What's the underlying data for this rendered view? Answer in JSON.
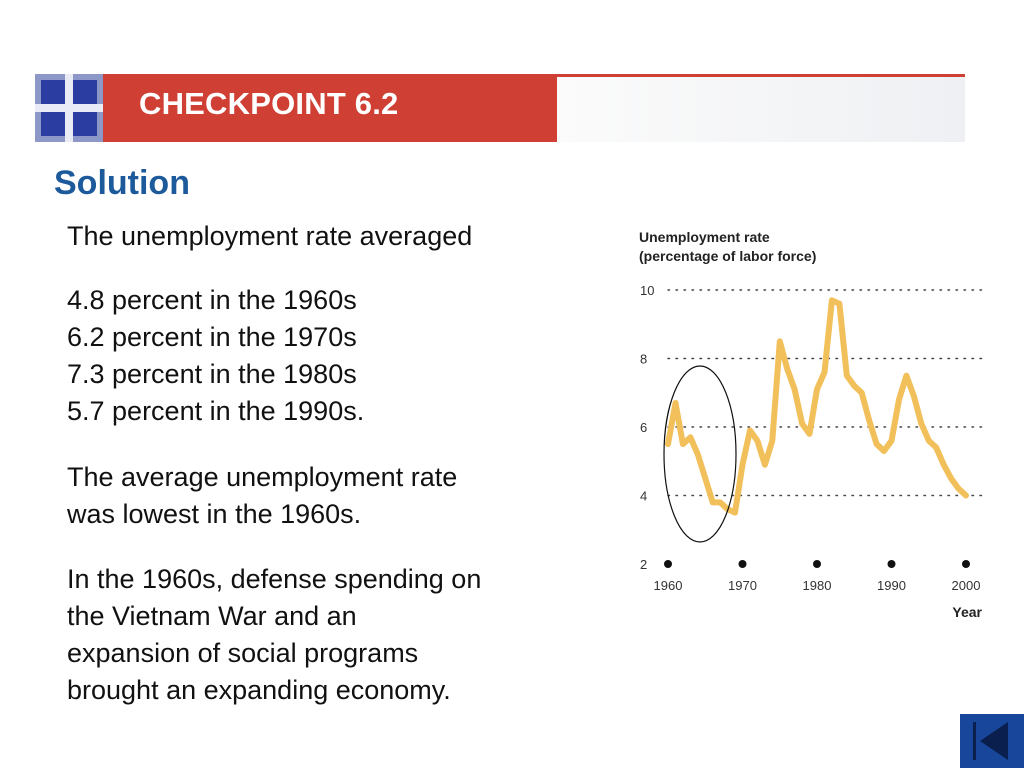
{
  "header": {
    "title": "CHECKPOINT 6.2"
  },
  "section_title": "Solution",
  "paragraphs": {
    "intro": "The unemployment rate averaged",
    "averages": [
      "4.8 percent in the 1960s",
      "6.2 percent in the 1970s",
      "7.3 percent in the 1980s",
      "5.7 percent in the 1990s."
    ],
    "lowest": [
      "The average unemployment rate",
      "was lowest in the 1960s."
    ],
    "context": [
      "In the 1960s, defense spending on",
      "the Vietnam War and an",
      "expansion of social programs",
      "brought an expanding economy."
    ]
  },
  "chart_data": {
    "type": "line",
    "title": "Unemployment rate",
    "subtitle": "(percentage of labor force)",
    "xlabel": "Year",
    "ylabel": "",
    "xlim": [
      1960,
      2000
    ],
    "ylim": [
      2,
      10
    ],
    "x_ticks": [
      "1960",
      "1970",
      "1980",
      "1990",
      "2000"
    ],
    "y_ticks": [
      "2",
      "4",
      "6",
      "8",
      "10"
    ],
    "gridlines_y": [
      4,
      6,
      8,
      10
    ],
    "line_color": "#f2c05a",
    "series": [
      {
        "name": "",
        "x": [
          1960,
          1961,
          1962,
          1963,
          1964,
          1965,
          1966,
          1967,
          1968,
          1969,
          1970,
          1971,
          1972,
          1973,
          1974,
          1975,
          1976,
          1977,
          1978,
          1979,
          1980,
          1981,
          1982,
          1983,
          1984,
          1985,
          1986,
          1987,
          1988,
          1989,
          1990,
          1991,
          1992,
          1993,
          1994,
          1995,
          1996,
          1997,
          1998,
          1999,
          2000
        ],
        "values": [
          5.5,
          6.7,
          5.5,
          5.7,
          5.2,
          4.5,
          3.8,
          3.8,
          3.6,
          3.5,
          4.9,
          5.9,
          5.6,
          4.9,
          5.6,
          8.5,
          7.7,
          7.1,
          6.1,
          5.8,
          7.1,
          7.6,
          9.7,
          9.6,
          7.5,
          7.2,
          7.0,
          6.2,
          5.5,
          5.3,
          5.6,
          6.8,
          7.5,
          6.9,
          6.1,
          5.6,
          5.4,
          4.9,
          4.5,
          4.2,
          4.0
        ]
      }
    ],
    "annotations": [
      {
        "type": "ellipse",
        "label": "",
        "x_range": [
          1960,
          1969
        ]
      }
    ]
  }
}
